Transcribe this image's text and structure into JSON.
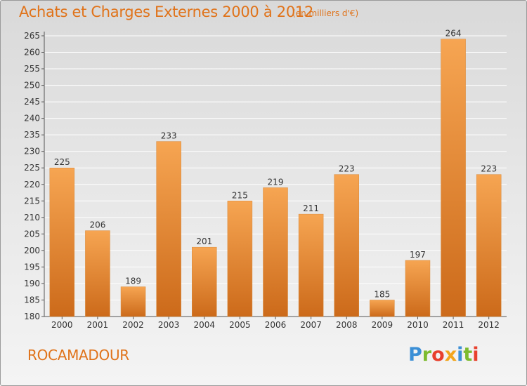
{
  "title": "Achats et Charges Externes 2000 à 2012",
  "subtitle": "(en milliers d'€)",
  "location": "ROCAMADOUR",
  "brand": {
    "text": "Proxiti",
    "letter_colors": [
      "#3b8fd6",
      "#7dbb2f",
      "#e8402d",
      "#f2a51c",
      "#3b8fd6",
      "#7dbb2f",
      "#e8402d"
    ]
  },
  "colors": {
    "title": "#e0731a",
    "bar_top": "#f6a552",
    "bar_bottom": "#cc6a1a",
    "grid": "#ffffff"
  },
  "chart_data": {
    "type": "bar",
    "categories": [
      "2000",
      "2001",
      "2002",
      "2003",
      "2004",
      "2005",
      "2006",
      "2007",
      "2008",
      "2009",
      "2010",
      "2011",
      "2012"
    ],
    "values": [
      225,
      206,
      189,
      233,
      201,
      215,
      219,
      211,
      223,
      185,
      197,
      264,
      223
    ],
    "ylim": [
      180,
      265
    ],
    "yticks": [
      180,
      185,
      190,
      195,
      200,
      205,
      210,
      215,
      220,
      225,
      230,
      235,
      240,
      245,
      250,
      255,
      260,
      265
    ],
    "grid": true,
    "show_value_labels": true
  }
}
